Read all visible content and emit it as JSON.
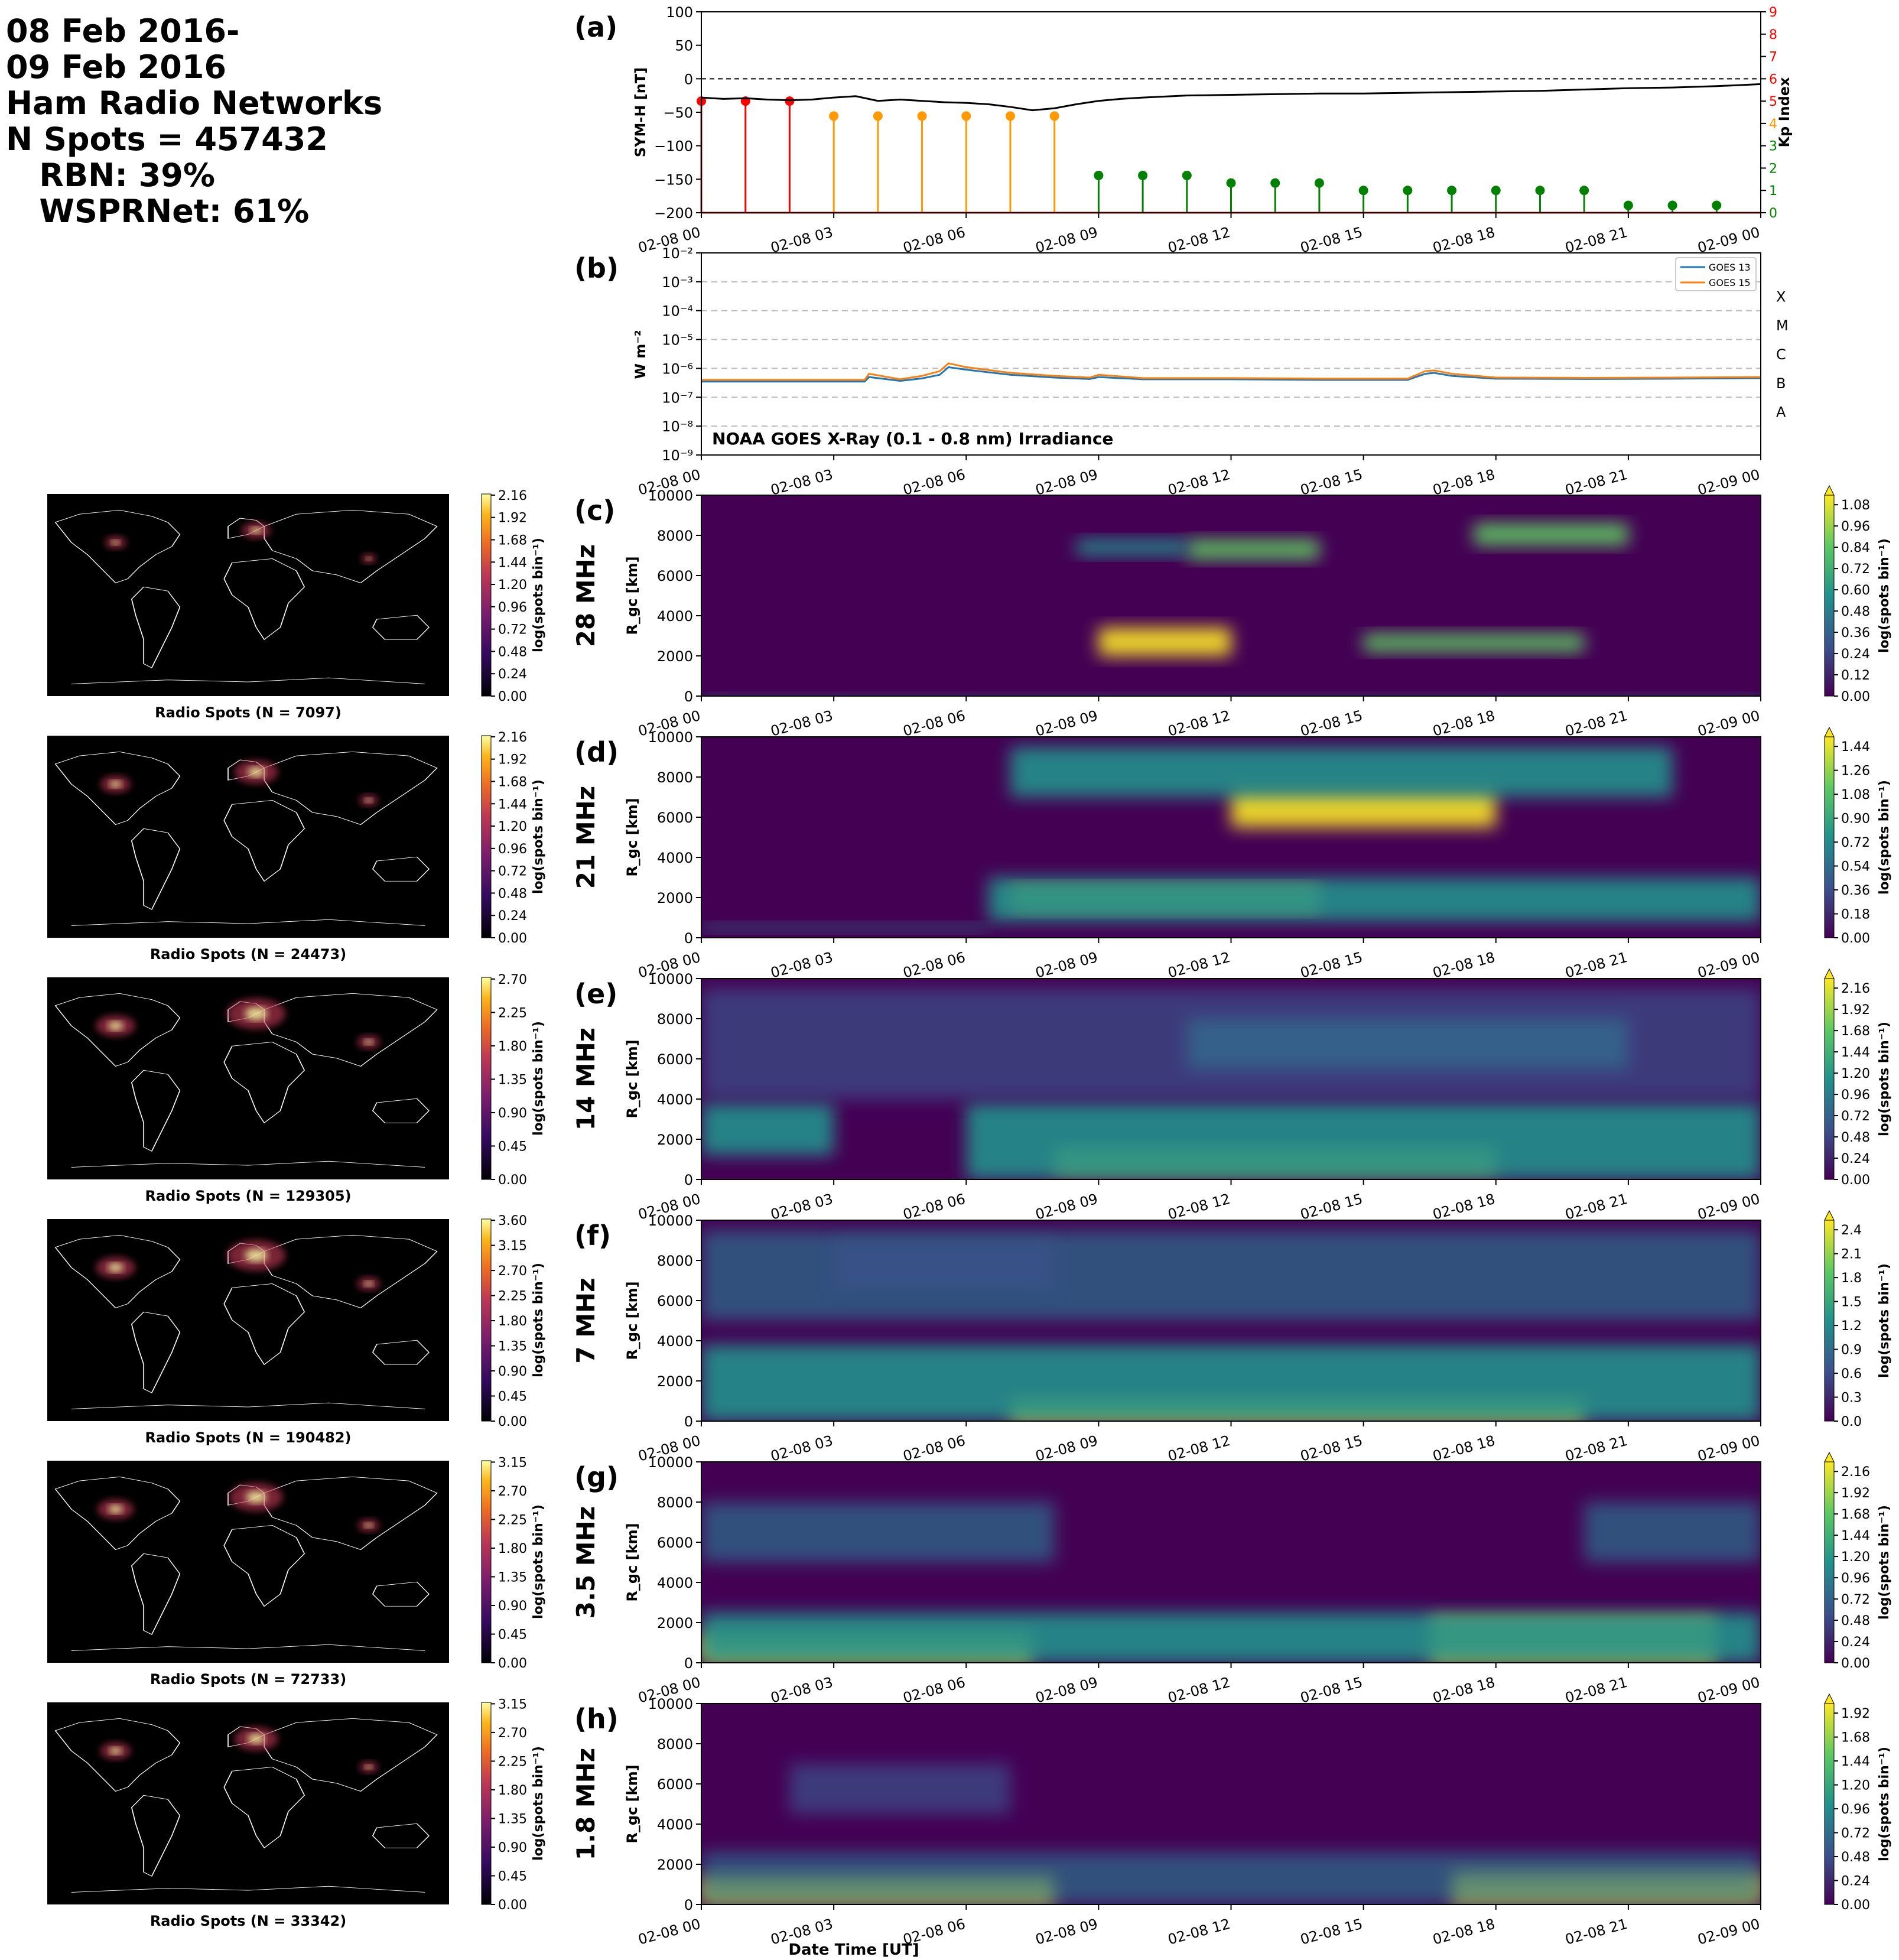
{
  "header": {
    "lines": [
      "08 Feb 2016-",
      "09 Feb 2016",
      "Ham Radio Networks",
      "N Spots = 457432",
      "   RBN: 39%",
      "   WSPRNet: 61%"
    ]
  },
  "time_ticks": [
    "02-08 00",
    "02-08 03",
    "02-08 06",
    "02-08 09",
    "02-08 12",
    "02-08 15",
    "02-08 18",
    "02-08 21",
    "02-09 00"
  ],
  "xlabel": "Date Time [UT]",
  "colors": {
    "symh_line": "#000000",
    "kp_low": "#008000",
    "kp_mid": "#ff9900",
    "kp_high": "#ff0000",
    "goes13": "#1f77b4",
    "goes15": "#ff7f0e",
    "map_ocean": "#000000",
    "coast": "#ffffff"
  },
  "chart_data": [
    {
      "type": "line",
      "panel": "(a)",
      "ylabel": "SYM-H [nT]",
      "ylim": [
        -200,
        100
      ],
      "yticks": [
        "100",
        "50",
        "0",
        "−50",
        "−100",
        "−150",
        "−200"
      ],
      "ylabel_right": "Kp Index",
      "ylim_right": [
        0,
        9
      ],
      "yticks_right": [
        "0",
        "1",
        "2",
        "3",
        "4",
        "5",
        "6",
        "7",
        "8",
        "9"
      ],
      "symh": {
        "x_hours": [
          0,
          0.5,
          1,
          1.5,
          2,
          2.5,
          3,
          3.5,
          4,
          4.5,
          5,
          5.5,
          6,
          6.5,
          7,
          7.5,
          8,
          8.5,
          9,
          9.5,
          10,
          11,
          12,
          13,
          14,
          15,
          16,
          17,
          18,
          19,
          20,
          21,
          22,
          23,
          24
        ],
        "y_nT": [
          -28,
          -30,
          -29,
          -31,
          -32,
          -31,
          -28,
          -26,
          -33,
          -31,
          -33,
          -35,
          -36,
          -38,
          -42,
          -47,
          -44,
          -38,
          -33,
          -30,
          -28,
          -25,
          -24,
          -23,
          -22,
          -22,
          -21,
          -20,
          -19,
          -18,
          -16,
          -14,
          -13,
          -11,
          -8
        ]
      },
      "kp": {
        "x_hours": [
          0,
          1,
          2,
          3,
          4,
          5,
          6,
          7,
          8,
          9,
          10,
          11,
          12,
          13,
          14,
          15,
          16,
          17,
          18,
          19,
          20,
          21,
          22,
          23
        ],
        "values": [
          5,
          5,
          5,
          4.33,
          4.33,
          4.33,
          4.33,
          4.33,
          4.33,
          1.67,
          1.67,
          1.67,
          1.33,
          1.33,
          1.33,
          1,
          1,
          1,
          1,
          1,
          1,
          0.33,
          0.33,
          0.33
        ]
      }
    },
    {
      "type": "line",
      "panel": "(b)",
      "ylabel": "W m⁻²",
      "yscale": "log",
      "ylim": [
        1e-09,
        0.01
      ],
      "yticks": [
        "10⁻²",
        "10⁻³",
        "10⁻⁴",
        "10⁻⁵",
        "10⁻⁶",
        "10⁻⁷",
        "10⁻⁸",
        "10⁻⁹"
      ],
      "flare_classes": [
        "X",
        "M",
        "C",
        "B",
        "A"
      ],
      "annotation": "NOAA GOES X-Ray (0.1 - 0.8 nm) Irradiance",
      "legend_position": "top-right",
      "series": [
        {
          "name": "GOES 13",
          "x_hours": [
            0,
            2,
            3.7,
            3.8,
            4.5,
            5,
            5.4,
            5.6,
            6,
            7,
            8,
            8.8,
            9,
            10,
            12,
            14,
            15,
            16,
            16.4,
            16.6,
            17,
            18,
            20,
            22,
            24
          ],
          "y": [
            3.5e-07,
            3.5e-07,
            3.5e-07,
            5e-07,
            3.7e-07,
            4.5e-07,
            6e-07,
            1.1e-06,
            9e-07,
            6e-07,
            4.8e-07,
            4.3e-07,
            5e-07,
            4.2e-07,
            4.2e-07,
            4e-07,
            4e-07,
            4e-07,
            6.5e-07,
            7e-07,
            5.5e-07,
            4.4e-07,
            4.3e-07,
            4.4e-07,
            4.6e-07
          ]
        },
        {
          "name": "GOES 15",
          "x_hours": [
            0,
            2,
            3.7,
            3.8,
            4.5,
            5,
            5.4,
            5.6,
            6,
            7,
            8,
            8.8,
            9,
            10,
            12,
            14,
            15,
            16,
            16.4,
            16.6,
            17,
            18,
            20,
            22,
            24
          ],
          "y": [
            4e-07,
            4e-07,
            4e-07,
            6.5e-07,
            4.2e-07,
            5.5e-07,
            8e-07,
            1.5e-06,
            1.1e-06,
            7e-07,
            5.5e-07,
            4.8e-07,
            6e-07,
            4.6e-07,
            4.6e-07,
            4.4e-07,
            4.4e-07,
            4.4e-07,
            8e-07,
            8.5e-07,
            6.5e-07,
            4.8e-07,
            4.7e-07,
            4.8e-07,
            5e-07
          ]
        }
      ]
    },
    {
      "type": "heatmap",
      "panel": "(c)",
      "band": "28 MHz",
      "ylabel": "R_gc [km]",
      "ylim": [
        0,
        10000
      ],
      "yticks": [
        "0",
        "2000",
        "4000",
        "6000",
        "8000",
        "10000"
      ],
      "colorbar_label": "log(spots bin⁻¹)",
      "colorbar_ticks": [
        "0.00",
        "0.12",
        "0.24",
        "0.36",
        "0.48",
        "0.60",
        "0.72",
        "0.84",
        "0.96",
        "1.08"
      ],
      "map_caption": "Radio Spots (N = 7097)",
      "map_colorbar_ticks": [
        "0.00",
        "0.24",
        "0.48",
        "0.72",
        "0.96",
        "1.20",
        "1.44",
        "1.68",
        "1.92",
        "2.16"
      ],
      "blobs": [
        [
          9.0,
          12.0,
          2000,
          3400,
          1.0
        ],
        [
          15.0,
          20.0,
          2200,
          3100,
          0.8
        ],
        [
          11.0,
          14.0,
          6800,
          7800,
          0.8
        ],
        [
          17.5,
          21.0,
          7500,
          8600,
          0.7
        ],
        [
          8.5,
          11.0,
          7000,
          7800,
          0.5
        ],
        [
          0,
          24,
          0,
          150,
          0.5
        ]
      ]
    },
    {
      "type": "heatmap",
      "panel": "(d)",
      "band": "21 MHz",
      "ylabel": "R_gc [km]",
      "ylim": [
        0,
        10000
      ],
      "yticks": [
        "0",
        "2000",
        "4000",
        "6000",
        "8000",
        "10000"
      ],
      "colorbar_label": "log(spots bin⁻¹)",
      "colorbar_ticks": [
        "0.00",
        "0.18",
        "0.36",
        "0.54",
        "0.72",
        "0.90",
        "1.08",
        "1.26",
        "1.44"
      ],
      "map_caption": "Radio Spots (N = 24473)",
      "map_colorbar_ticks": [
        "0.00",
        "0.24",
        "0.48",
        "0.72",
        "0.96",
        "1.20",
        "1.44",
        "1.68",
        "1.92",
        "2.16"
      ],
      "blobs": [
        [
          7.0,
          14.0,
          1400,
          2500,
          1.0
        ],
        [
          12.0,
          18.0,
          5500,
          7500,
          0.9
        ],
        [
          6.5,
          24.0,
          800,
          3000,
          0.5
        ],
        [
          7.0,
          22.0,
          7000,
          9500,
          0.45
        ],
        [
          0,
          6.5,
          300,
          700,
          0.35
        ]
      ]
    },
    {
      "type": "heatmap",
      "panel": "(e)",
      "band": "14 MHz",
      "ylabel": "R_gc [km]",
      "ylim": [
        0,
        10000
      ],
      "yticks": [
        "0",
        "2000",
        "4000",
        "6000",
        "8000",
        "10000"
      ],
      "colorbar_label": "log(spots bin⁻¹)",
      "colorbar_ticks": [
        "0.00",
        "0.24",
        "0.48",
        "0.72",
        "0.96",
        "1.20",
        "1.44",
        "1.68",
        "1.92",
        "2.16"
      ],
      "map_caption": "Radio Spots (N = 129305)",
      "map_colorbar_ticks": [
        "0.00",
        "0.45",
        "0.90",
        "1.35",
        "1.80",
        "2.25",
        "2.70"
      ],
      "blobs": [
        [
          8.0,
          18.0,
          400,
          1600,
          1.0
        ],
        [
          6.0,
          24.0,
          0,
          3800,
          0.55
        ],
        [
          0,
          3.0,
          1200,
          3800,
          0.55
        ],
        [
          11.0,
          21.0,
          5500,
          8000,
          0.45
        ],
        [
          0,
          24,
          4000,
          9500,
          0.15
        ]
      ]
    },
    {
      "type": "heatmap",
      "panel": "(f)",
      "band": "7 MHz",
      "ylabel": "R_gc [km]",
      "ylim": [
        0,
        10000
      ],
      "yticks": [
        "0",
        "2000",
        "4000",
        "6000",
        "8000",
        "10000"
      ],
      "colorbar_label": "log(spots bin⁻¹)",
      "colorbar_ticks": [
        "0.0",
        "0.3",
        "0.6",
        "0.9",
        "1.2",
        "1.5",
        "1.8",
        "2.1",
        "2.4"
      ],
      "map_caption": "Radio Spots (N = 190482)",
      "map_colorbar_ticks": [
        "0.00",
        "0.45",
        "0.90",
        "1.35",
        "1.80",
        "2.25",
        "2.70",
        "3.15",
        "3.60"
      ],
      "blobs": [
        [
          7.0,
          20.0,
          0,
          1200,
          1.0
        ],
        [
          0,
          24,
          0,
          3800,
          0.55
        ],
        [
          0,
          24,
          5000,
          9500,
          0.3
        ],
        [
          3.0,
          8.0,
          6500,
          9000,
          0.2
        ]
      ]
    },
    {
      "type": "heatmap",
      "panel": "(g)",
      "band": "3.5 MHz",
      "ylabel": "R_gc [km]",
      "ylim": [
        0,
        10000
      ],
      "yticks": [
        "0",
        "2000",
        "4000",
        "6000",
        "8000",
        "10000"
      ],
      "colorbar_label": "log(spots bin⁻¹)",
      "colorbar_ticks": [
        "0.00",
        "0.24",
        "0.48",
        "0.72",
        "0.96",
        "1.20",
        "1.44",
        "1.68",
        "1.92",
        "2.16"
      ],
      "map_caption": "Radio Spots (N = 72733)",
      "map_colorbar_ticks": [
        "0.00",
        "0.45",
        "0.90",
        "1.35",
        "1.80",
        "2.25",
        "2.70",
        "3.15"
      ],
      "blobs": [
        [
          0,
          7.5,
          0,
          1500,
          0.9
        ],
        [
          16.5,
          23.0,
          0,
          2200,
          0.9
        ],
        [
          0,
          24,
          0,
          2500,
          0.4
        ],
        [
          0,
          8.0,
          5000,
          8000,
          0.35
        ],
        [
          20.0,
          24.0,
          5000,
          8000,
          0.25
        ]
      ]
    },
    {
      "type": "heatmap",
      "panel": "(h)",
      "band": "1.8 MHz",
      "ylabel": "R_gc [km]",
      "ylim": [
        0,
        10000
      ],
      "yticks": [
        "0",
        "2000",
        "4000",
        "6000",
        "8000",
        "10000"
      ],
      "colorbar_label": "log(spots bin⁻¹)",
      "colorbar_ticks": [
        "0.00",
        "0.24",
        "0.48",
        "0.72",
        "0.96",
        "1.20",
        "1.44",
        "1.68",
        "1.92"
      ],
      "map_caption": "Radio Spots (N = 33342)",
      "map_colorbar_ticks": [
        "0.00",
        "0.45",
        "0.90",
        "1.35",
        "1.80",
        "2.25",
        "2.70",
        "3.15"
      ],
      "blobs": [
        [
          0,
          8.0,
          0,
          1400,
          0.9
        ],
        [
          17.0,
          24.0,
          0,
          1600,
          0.85
        ],
        [
          0,
          24,
          0,
          2600,
          0.3
        ],
        [
          2.0,
          7.0,
          4500,
          7000,
          0.15
        ]
      ]
    }
  ]
}
